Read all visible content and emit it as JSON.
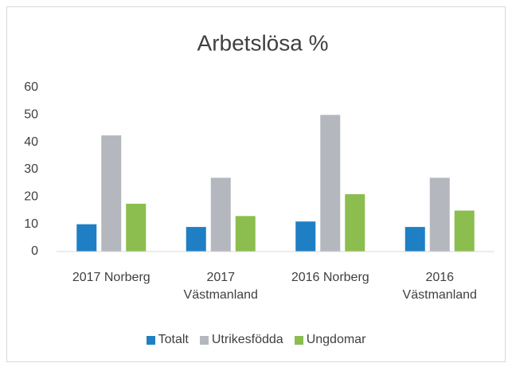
{
  "chart_data": {
    "type": "bar",
    "title": "Arbetslösa %",
    "categories": [
      "2017 Norberg",
      "2017 Västmanland",
      "2016 Norberg",
      "2016 Västmanland"
    ],
    "series": [
      {
        "name": "Totalt",
        "color": "#1f7fc4",
        "values": [
          10,
          9,
          11,
          9
        ]
      },
      {
        "name": "Utrikesfödda",
        "color": "#b4b8be",
        "values": [
          42.5,
          27,
          50,
          27
        ]
      },
      {
        "name": "Ungdomar",
        "color": "#8cbd4f",
        "values": [
          17.5,
          13,
          21,
          15
        ]
      }
    ],
    "ylim": [
      0,
      60
    ],
    "yticks": [
      0,
      10,
      20,
      30,
      40,
      50,
      60
    ],
    "grid": false,
    "legend": "bottom"
  }
}
